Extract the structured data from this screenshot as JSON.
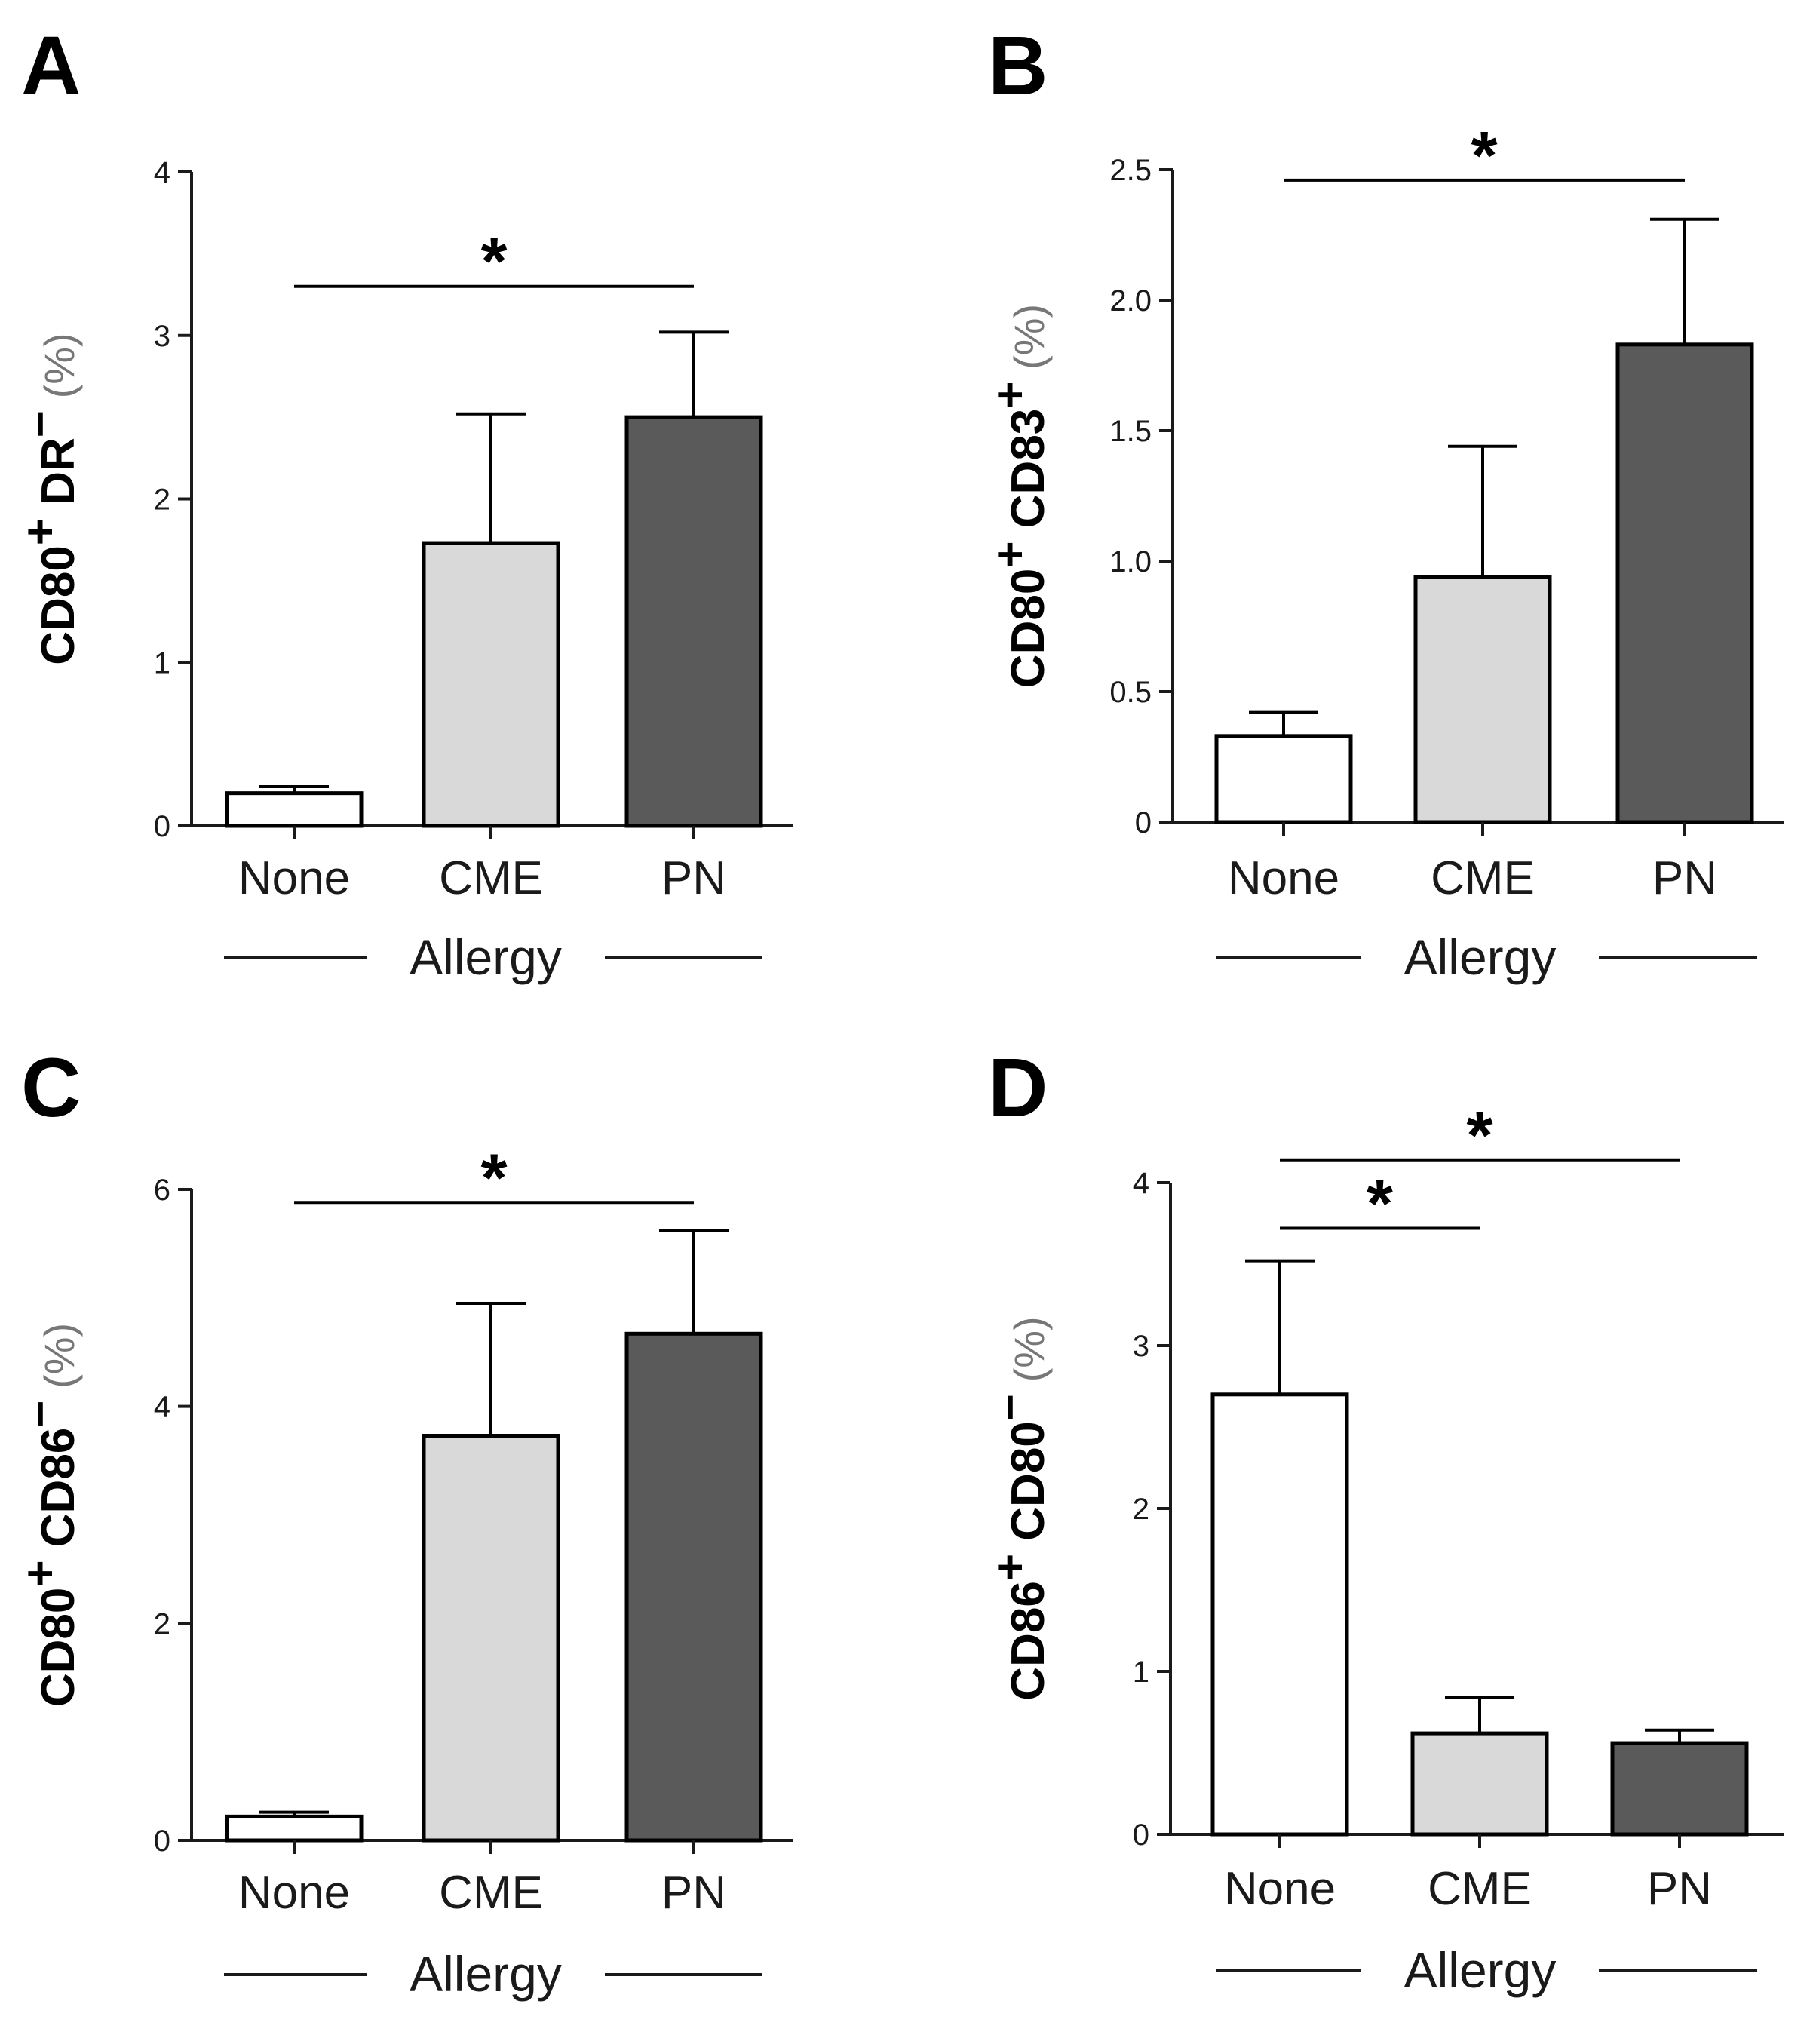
{
  "chart_data": [
    {
      "panel": "A",
      "type": "bar",
      "categories": [
        "None",
        "CME",
        "PN"
      ],
      "values": [
        0.2,
        1.73,
        2.5
      ],
      "errors": [
        0.04,
        0.79,
        0.52
      ],
      "colors": [
        "#ffffff",
        "#d9d9d9",
        "#5a5a5a"
      ],
      "ylabel": {
        "marker": "CD80",
        "sup": "+",
        "rest": " DR",
        "rest_sup": "−",
        "unit": "(%)"
      },
      "yticks": [
        "0",
        "1",
        "2",
        "3",
        "4"
      ],
      "ytick_values": [
        0,
        1,
        2,
        3,
        4
      ],
      "ylim": [
        0,
        4
      ],
      "group_label": "Allergy",
      "significance": [
        {
          "from": 0,
          "to": 2,
          "y": 3.3,
          "label": "*"
        }
      ]
    },
    {
      "panel": "B",
      "type": "bar",
      "categories": [
        "None",
        "CME",
        "PN"
      ],
      "values": [
        0.33,
        0.94,
        1.83
      ],
      "errors": [
        0.09,
        0.5,
        0.48
      ],
      "colors": [
        "#ffffff",
        "#d9d9d9",
        "#5a5a5a"
      ],
      "ylabel": {
        "marker": "CD80",
        "sup": "+",
        "rest": " CD83",
        "rest_sup": "+",
        "unit": "(%)"
      },
      "yticks": [
        "0",
        "0.5",
        "1.0",
        "1.5",
        "2.0",
        "2.5"
      ],
      "ytick_values": [
        0,
        0.5,
        1.0,
        1.5,
        2.0,
        2.5
      ],
      "ylim": [
        0,
        2.5
      ],
      "group_label": "Allergy",
      "significance": [
        {
          "from": 0,
          "to": 2,
          "y": 2.46,
          "label": "*"
        }
      ]
    },
    {
      "panel": "C",
      "type": "bar",
      "categories": [
        "None",
        "CME",
        "PN"
      ],
      "values": [
        0.22,
        3.73,
        4.67
      ],
      "errors": [
        0.04,
        1.22,
        0.95
      ],
      "colors": [
        "#ffffff",
        "#d9d9d9",
        "#5a5a5a"
      ],
      "ylabel": {
        "marker": "CD80",
        "sup": "+",
        "rest": " CD86",
        "rest_sup": "−",
        "unit": "(%)"
      },
      "yticks": [
        "0",
        "2",
        "4",
        "6"
      ],
      "ytick_values": [
        0,
        2,
        4,
        6
      ],
      "ylim": [
        0,
        6
      ],
      "group_label": "Allergy",
      "significance": [
        {
          "from": 0,
          "to": 2,
          "y": 5.88,
          "label": "*"
        }
      ]
    },
    {
      "panel": "D",
      "type": "bar",
      "categories": [
        "None",
        "CME",
        "PN"
      ],
      "values": [
        2.7,
        0.62,
        0.56
      ],
      "errors": [
        0.82,
        0.22,
        0.08
      ],
      "colors": [
        "#ffffff",
        "#d9d9d9",
        "#5a5a5a"
      ],
      "ylabel": {
        "marker": "CD86",
        "sup": "+",
        "rest": " CD80",
        "rest_sup": "−",
        "unit": "(%)"
      },
      "yticks": [
        "0",
        "1",
        "2",
        "3",
        "4"
      ],
      "ytick_values": [
        0,
        1,
        2,
        3,
        4
      ],
      "ylim": [
        0,
        4
      ],
      "group_label": "Allergy",
      "significance": [
        {
          "from": 0,
          "to": 1,
          "y": 3.72,
          "label": "*"
        },
        {
          "from": 0,
          "to": 2,
          "y": 4.14,
          "label": "*"
        }
      ]
    }
  ]
}
